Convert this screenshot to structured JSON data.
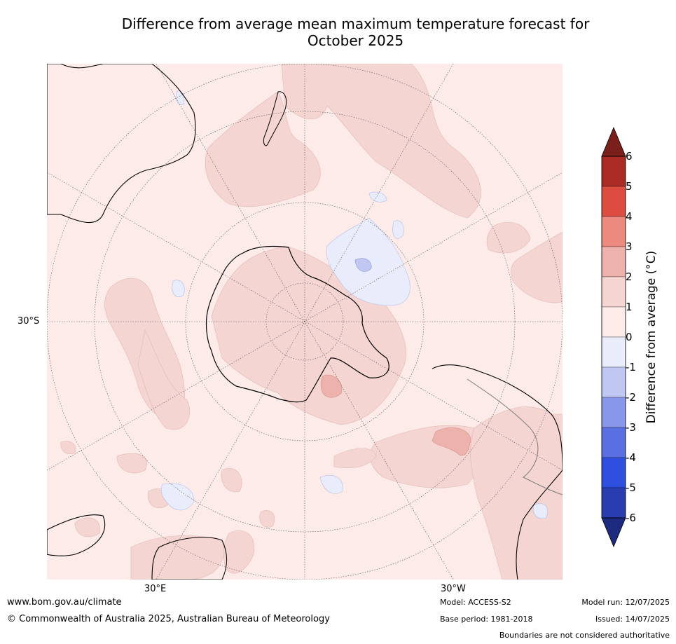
{
  "title_line1": "Difference from average mean maximum temperature forecast for",
  "title_line2": "October 2025",
  "map": {
    "lat_label": "30°S",
    "lon_labels": [
      "30°E",
      "30°W"
    ],
    "colors": {
      "ocean_base": "#fcebe9",
      "plus1to2": "#f5d5d2",
      "plus2to3": "#eeb2ad",
      "minus0to1": "#e9ecfb",
      "minus1to2": "#c0c8f2",
      "coast": "#000000"
    }
  },
  "colorbar": {
    "label": "Difference from average (°C)",
    "ticks": [
      "6",
      "5",
      "4",
      "3",
      "2",
      "1",
      "0",
      "-1",
      "-2",
      "-3",
      "-4",
      "-5",
      "-6"
    ],
    "bins": [
      "#a92b24",
      "#dd4c41",
      "#ec8a80",
      "#eeb2ad",
      "#f5d5d2",
      "#fcebe9",
      "#e9ecfb",
      "#c0c8f2",
      "#8897ea",
      "#5a6fe2",
      "#2f4fdf",
      "#2a3db0"
    ],
    "over_color": "#7a1f19",
    "under_color": "#1c2a80"
  },
  "footer": {
    "url": "www.bom.gov.au/climate",
    "copyright": "© Commonwealth of Australia 2025, Australian Bureau of Meteorology",
    "model": "Model: ACCESS-S2",
    "base_period": "Base period: 1981-2018",
    "model_run": "Model run: 12/07/2025",
    "issued": "Issued: 14/07/2025",
    "boundaries": "Boundaries are not considered authoritative"
  }
}
